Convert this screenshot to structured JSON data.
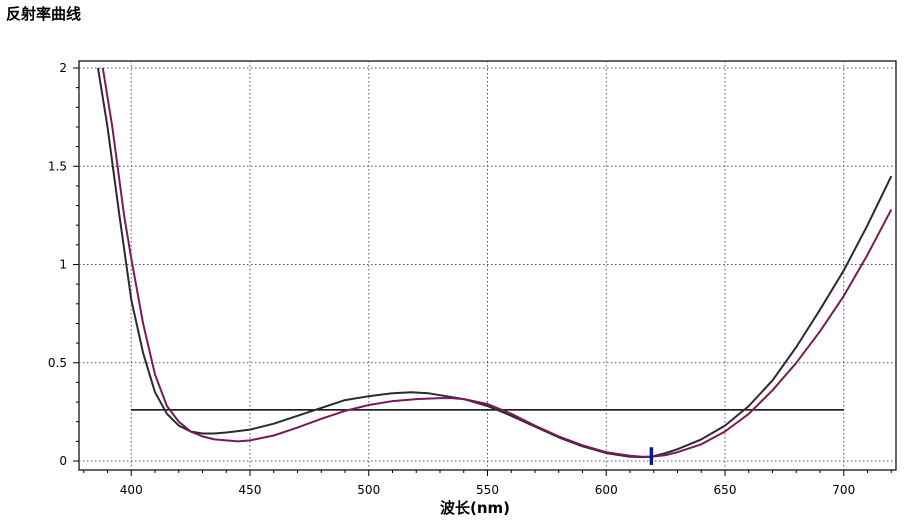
{
  "chart_data": {
    "type": "line",
    "title": "反射率曲线",
    "xlabel": "波长(nm)",
    "ylabel": "",
    "xlim": [
      378,
      722
    ],
    "ylim": [
      0,
      2
    ],
    "x_ticks": [
      400,
      450,
      500,
      550,
      600,
      650,
      700
    ],
    "x_tick_labels": [
      "400",
      "450",
      "500",
      "550",
      "600",
      "650",
      "700"
    ],
    "y_ticks": [
      0,
      0.5,
      1,
      1.5,
      2
    ],
    "y_tick_labels": [
      "0",
      "0.5",
      "1",
      "1.5",
      "2"
    ],
    "grid": true,
    "grid_style": "dotted",
    "series": [
      {
        "color": "#2b2b2b",
        "x": [
          386,
          390,
          395,
          400,
          405,
          410,
          415,
          420,
          425,
          430,
          435,
          440,
          450,
          460,
          470,
          480,
          490,
          500,
          510,
          518,
          525,
          530,
          540,
          550,
          560,
          570,
          580,
          590,
          600,
          610,
          615,
          619,
          625,
          630,
          640,
          650,
          660,
          670,
          680,
          690,
          700,
          710,
          720
        ],
        "y": [
          2.0,
          1.7,
          1.25,
          0.82,
          0.55,
          0.35,
          0.24,
          0.18,
          0.15,
          0.14,
          0.14,
          0.145,
          0.16,
          0.19,
          0.23,
          0.27,
          0.31,
          0.33,
          0.345,
          0.35,
          0.345,
          0.335,
          0.315,
          0.28,
          0.23,
          0.175,
          0.12,
          0.075,
          0.04,
          0.022,
          0.02,
          0.022,
          0.04,
          0.06,
          0.11,
          0.18,
          0.28,
          0.41,
          0.58,
          0.77,
          0.97,
          1.2,
          1.45
        ]
      },
      {
        "color": "#7a1a5a",
        "x": [
          388,
          392,
          397,
          400,
          405,
          410,
          415,
          420,
          425,
          430,
          435,
          440,
          445,
          450,
          460,
          470,
          480,
          490,
          500,
          510,
          520,
          530,
          535,
          540,
          550,
          560,
          570,
          580,
          590,
          600,
          610,
          615,
          619,
          625,
          630,
          640,
          650,
          660,
          670,
          680,
          690,
          700,
          710,
          720
        ],
        "y": [
          2.0,
          1.7,
          1.25,
          1.03,
          0.7,
          0.44,
          0.28,
          0.2,
          0.15,
          0.125,
          0.11,
          0.105,
          0.1,
          0.105,
          0.13,
          0.17,
          0.215,
          0.255,
          0.285,
          0.305,
          0.315,
          0.32,
          0.32,
          0.315,
          0.29,
          0.24,
          0.18,
          0.125,
          0.08,
          0.045,
          0.027,
          0.022,
          0.022,
          0.03,
          0.045,
          0.085,
          0.15,
          0.24,
          0.36,
          0.5,
          0.66,
          0.84,
          1.05,
          1.28
        ]
      }
    ],
    "reference_line": {
      "y": 0.26,
      "x_start": 400,
      "x_end": 700,
      "color": "#000000"
    },
    "marker": {
      "x": 619,
      "y_from": -0.02,
      "y_to": 0.07,
      "color": "#0a1a8a"
    }
  }
}
